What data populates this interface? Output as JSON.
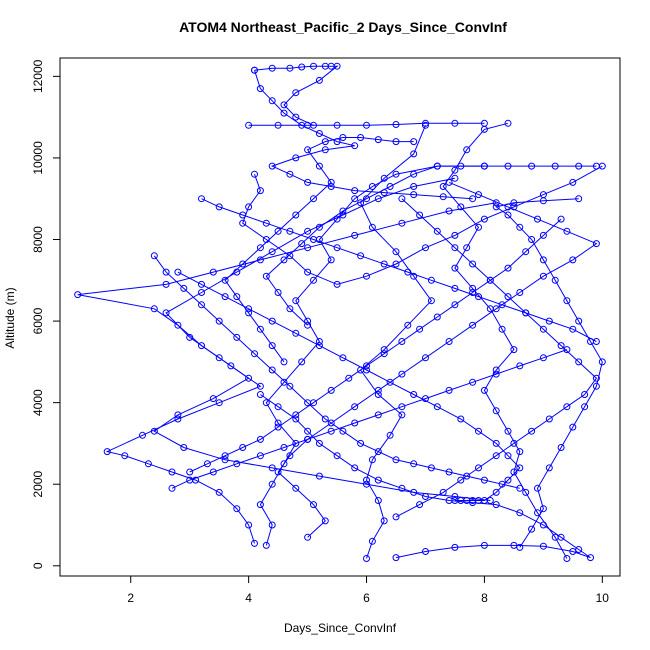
{
  "chart_data": {
    "type": "line",
    "title": "ATOM4 Northeast_Pacific_2 Days_Since_ConvInf",
    "xlabel": "Days_Since_ConvInf",
    "ylabel": "Altitude (m)",
    "xlim": [
      0.8,
      10.3
    ],
    "ylim": [
      -250,
      12450
    ],
    "xticks": [
      2,
      4,
      6,
      8,
      10
    ],
    "yticks": [
      0,
      2000,
      4000,
      6000,
      8000,
      10000,
      12000
    ],
    "grid": false,
    "legend": "none",
    "colors": {
      "series": "#0000ff",
      "axis": "#000000"
    },
    "series": [
      {
        "x": [
          6.0,
          6.1,
          6.3,
          6.2,
          6.0,
          6.1,
          6.4,
          6.6,
          6.2,
          5.9,
          6.3,
          6.7,
          7.1,
          6.8,
          6.5,
          6.1,
          5.9,
          6.3,
          6.8,
          7.0
        ],
        "y": [
          180,
          600,
          1100,
          1600,
          2100,
          2600,
          3200,
          3700,
          4200,
          4800,
          5300,
          5900,
          6500,
          7100,
          7700,
          8300,
          8900,
          9500,
          10100,
          10800
        ]
      },
      {
        "x": [
          4.3,
          4.4,
          4.2,
          4.4,
          4.6,
          4.8,
          4.5,
          4.3,
          4.6,
          4.9,
          5.2,
          5.0,
          4.8,
          5.1,
          5.4,
          5.2,
          5.5,
          5.8,
          6.1,
          6.5,
          7.2,
          8.0
        ],
        "y": [
          500,
          1000,
          1500,
          2000,
          2500,
          3000,
          3500,
          4000,
          4500,
          5000,
          5500,
          6000,
          6500,
          7000,
          7500,
          8000,
          8500,
          9000,
          9300,
          9600,
          9800,
          9800
        ]
      },
      {
        "x": [
          9.4,
          9.2,
          8.9,
          8.7,
          8.5,
          8.6,
          8.4,
          8.2,
          8.0,
          8.2,
          8.5,
          8.3,
          8.1,
          7.8,
          7.5,
          7.7,
          7.9,
          7.6,
          7.3,
          7.5,
          7.7,
          8.0,
          8.4
        ],
        "y": [
          180,
          700,
          1300,
          1800,
          2300,
          2800,
          3300,
          3800,
          4300,
          4800,
          5300,
          5800,
          6300,
          6800,
          7300,
          7800,
          8300,
          8800,
          9300,
          9700,
          10200,
          10700,
          10850
        ]
      },
      {
        "x": [
          8.6,
          8.8,
          9.0,
          8.9,
          9.1,
          9.3,
          9.5,
          9.7,
          9.9,
          10.0,
          9.8,
          9.6,
          9.4,
          9.2,
          9.0,
          8.8,
          8.6,
          8.4,
          8.2,
          8.5,
          9.0,
          9.6
        ],
        "y": [
          450,
          900,
          1400,
          1900,
          2400,
          2900,
          3400,
          3900,
          4400,
          5000,
          5500,
          6000,
          6500,
          7000,
          7500,
          8000,
          8300,
          8600,
          8800,
          8900,
          8950,
          9000
        ]
      },
      {
        "x": [
          8.1,
          7.5,
          6.8,
          6.0,
          5.2,
          4.4,
          3.6,
          2.9,
          2.4,
          2.8,
          3.4,
          4.0,
          3.5,
          3.0,
          2.6,
          3.2,
          3.8,
          4.4,
          5.0,
          5.6,
          6.2,
          6.8,
          7.5
        ],
        "y": [
          1600,
          1700,
          1800,
          2000,
          2200,
          2400,
          2600,
          2900,
          3300,
          3700,
          4100,
          4600,
          5100,
          5600,
          6200,
          6700,
          7200,
          7700,
          8200,
          8600,
          9000,
          9300,
          9500
        ]
      },
      {
        "x": [
          4.1,
          4.0,
          3.8,
          3.5,
          3.1,
          2.7,
          2.3,
          1.9,
          1.6,
          2.2,
          2.8,
          3.5,
          4.2,
          3.7,
          3.2,
          2.8,
          2.4,
          1.1,
          2.6,
          3.4,
          4.2,
          5.0,
          5.8,
          6.6,
          7.4,
          8.2
        ],
        "y": [
          550,
          1000,
          1400,
          1800,
          2100,
          2300,
          2500,
          2700,
          2800,
          3200,
          3600,
          4000,
          4400,
          4900,
          5400,
          5900,
          6300,
          6650,
          6900,
          7200,
          7500,
          7800,
          8100,
          8400,
          8700,
          8900
        ]
      },
      {
        "x": [
          5.0,
          5.3,
          5.1,
          4.8,
          4.5,
          4.7,
          5.0,
          5.4,
          5.8,
          6.2,
          6.6,
          7.0,
          7.4,
          7.8,
          8.2,
          8.6,
          9.0,
          9.5,
          9.9,
          9.4,
          8.9,
          8.4,
          7.9,
          7.4
        ],
        "y": [
          700,
          1100,
          1500,
          1900,
          2300,
          2700,
          3100,
          3500,
          3900,
          4300,
          4700,
          5100,
          5500,
          5900,
          6300,
          6700,
          7100,
          7500,
          7900,
          8200,
          8500,
          8800,
          9100,
          9400
        ]
      },
      {
        "x": [
          6.5,
          6.9,
          7.3,
          7.6,
          7.9,
          8.2,
          8.5,
          8.8,
          9.1,
          9.4,
          9.7,
          9.9,
          9.6,
          9.3,
          9.0,
          8.7,
          8.4,
          8.1,
          7.8,
          7.5,
          7.2,
          6.9,
          6.6
        ],
        "y": [
          1200,
          1500,
          1800,
          2100,
          2400,
          2700,
          3000,
          3300,
          3600,
          3900,
          4200,
          4600,
          5000,
          5400,
          5800,
          6200,
          6600,
          7000,
          7400,
          7800,
          8200,
          8600,
          9000
        ]
      },
      {
        "x": [
          3.0,
          3.3,
          3.6,
          3.9,
          4.2,
          4.5,
          4.8,
          5.1,
          5.4,
          5.7,
          6.0,
          6.3,
          6.6,
          6.9,
          7.2,
          7.5,
          7.8,
          8.1,
          8.4,
          8.7,
          9.0,
          9.3
        ],
        "y": [
          2300,
          2500,
          2700,
          2900,
          3100,
          3400,
          3700,
          4000,
          4300,
          4600,
          4900,
          5200,
          5500,
          5800,
          6100,
          6400,
          6700,
          7000,
          7300,
          7700,
          8100,
          8500
        ]
      },
      {
        "x": [
          4.6,
          4.4,
          4.2,
          4.0,
          3.8,
          3.6,
          3.9,
          4.2,
          4.5,
          4.8,
          5.1,
          5.4,
          5.2,
          5.0,
          5.3,
          5.6,
          5.9,
          6.2,
          6.5,
          6.8
        ],
        "y": [
          5000,
          5400,
          5800,
          6200,
          6600,
          7000,
          7400,
          7800,
          8200,
          8600,
          9000,
          9400,
          9800,
          10200,
          10400,
          10500,
          10500,
          10450,
          10400,
          10400
        ]
      },
      {
        "x": [
          4.1,
          4.2,
          4.0,
          3.9,
          4.3,
          4.7,
          5.0,
          5.5,
          6.0,
          6.5,
          7.0,
          7.5,
          8.0,
          8.5,
          9.0,
          9.5,
          10.0
        ],
        "y": [
          9600,
          9200,
          8800,
          8400,
          8000,
          7600,
          7200,
          6900,
          7100,
          7400,
          7800,
          8100,
          8500,
          8800,
          9100,
          9400,
          9800
        ]
      },
      {
        "x": [
          4.1,
          4.2,
          4.4,
          4.6,
          4.9,
          5.2,
          5.5,
          5.8,
          5.3,
          4.8,
          4.4,
          4.7,
          5.0,
          5.4,
          5.8,
          6.3,
          6.8,
          7.3,
          7.8
        ],
        "y": [
          12150,
          11700,
          11400,
          11100,
          10800,
          10600,
          10400,
          10300,
          10200,
          10000,
          9800,
          9600,
          9400,
          9300,
          9200,
          9150,
          9100,
          9050,
          9000
        ]
      },
      {
        "x": [
          4.1,
          4.4,
          4.7,
          4.9,
          5.1,
          5.3,
          5.4,
          5.5,
          5.2,
          4.8,
          4.6,
          4.8,
          5.1
        ],
        "y": [
          12150,
          12200,
          12200,
          12230,
          12250,
          12250,
          12250,
          12250,
          11900,
          11600,
          11300,
          11000,
          10800
        ]
      },
      {
        "x": [
          4.0,
          4.5,
          5.0,
          5.5,
          6.0,
          6.5,
          7.0,
          7.5,
          8.0
        ],
        "y": [
          10800,
          10800,
          10800,
          10800,
          10800,
          10820,
          10850,
          10850,
          10850
        ]
      },
      {
        "x": [
          6.5,
          7.0,
          7.5,
          8.0,
          8.5,
          9.0,
          9.5,
          9.8,
          9.6,
          9.3,
          9.0,
          8.6,
          8.2,
          7.8,
          7.4,
          7.0,
          6.6,
          6.2,
          5.8,
          5.5,
          5.2,
          5.0,
          4.8,
          4.5,
          4.2
        ],
        "y": [
          200,
          350,
          450,
          500,
          500,
          480,
          350,
          200,
          400,
          700,
          1000,
          1300,
          1500,
          1550,
          1600,
          1700,
          1900,
          2100,
          2400,
          2700,
          3000,
          3300,
          3600,
          3900,
          4200
        ]
      },
      {
        "x": [
          7.5,
          7.6,
          7.7,
          7.8,
          7.9,
          8.0,
          8.2,
          8.4,
          8.6,
          8.4,
          8.2,
          7.9,
          7.6,
          7.2,
          6.8,
          6.4,
          6.0,
          5.6,
          5.2,
          4.8,
          4.4,
          4.0,
          3.6,
          3.2,
          2.8
        ],
        "y": [
          1600,
          1600,
          1600,
          1600,
          1600,
          1600,
          1800,
          2100,
          2400,
          2700,
          3000,
          3300,
          3600,
          3900,
          4200,
          4500,
          4800,
          5100,
          5400,
          5700,
          6000,
          6300,
          6600,
          6900,
          7200
        ]
      },
      {
        "x": [
          2.4,
          2.6,
          2.9,
          3.2,
          3.5,
          3.8,
          4.1,
          4.4,
          4.7,
          5.0,
          5.3,
          5.6,
          5.9,
          6.2,
          6.5,
          6.8,
          7.1,
          7.4,
          7.7,
          8.0,
          8.3,
          8.6
        ],
        "y": [
          7600,
          7200,
          6800,
          6400,
          6000,
          5600,
          5200,
          4800,
          4400,
          4000,
          3600,
          3300,
          3000,
          2800,
          2600,
          2500,
          2400,
          2300,
          2200,
          2100,
          2000,
          1900
        ]
      },
      {
        "x": [
          5.0,
          4.7,
          4.5,
          4.3,
          4.6,
          4.9,
          5.2,
          5.6,
          6.0,
          6.4,
          6.8,
          7.2,
          7.6,
          8.0,
          8.4,
          8.8,
          9.2,
          9.6,
          9.9
        ],
        "y": [
          5900,
          6300,
          6700,
          7100,
          7500,
          7900,
          8300,
          8700,
          9000,
          9300,
          9600,
          9800,
          9800,
          9800,
          9800,
          9800,
          9800,
          9800,
          9800
        ]
      },
      {
        "x": [
          3.2,
          3.5,
          3.9,
          4.3,
          4.7,
          5.1,
          5.5,
          5.9,
          6.3,
          6.7,
          7.1,
          7.5,
          7.9,
          8.3,
          8.7,
          9.1,
          9.5,
          9.9
        ],
        "y": [
          9000,
          8800,
          8600,
          8400,
          8200,
          8000,
          7800,
          7600,
          7400,
          7200,
          7000,
          6800,
          6600,
          6400,
          6200,
          6000,
          5800,
          5500
        ]
      },
      {
        "x": [
          2.7,
          3.0,
          3.4,
          3.8,
          4.2,
          4.6,
          5.0,
          5.4,
          5.8,
          6.2,
          6.6,
          7.0,
          7.4,
          7.8,
          8.2,
          8.6,
          9.0,
          9.4
        ],
        "y": [
          1900,
          2100,
          2300,
          2500,
          2700,
          2900,
          3100,
          3300,
          3500,
          3700,
          3900,
          4100,
          4300,
          4500,
          4700,
          4900,
          5100,
          5300
        ]
      }
    ]
  }
}
